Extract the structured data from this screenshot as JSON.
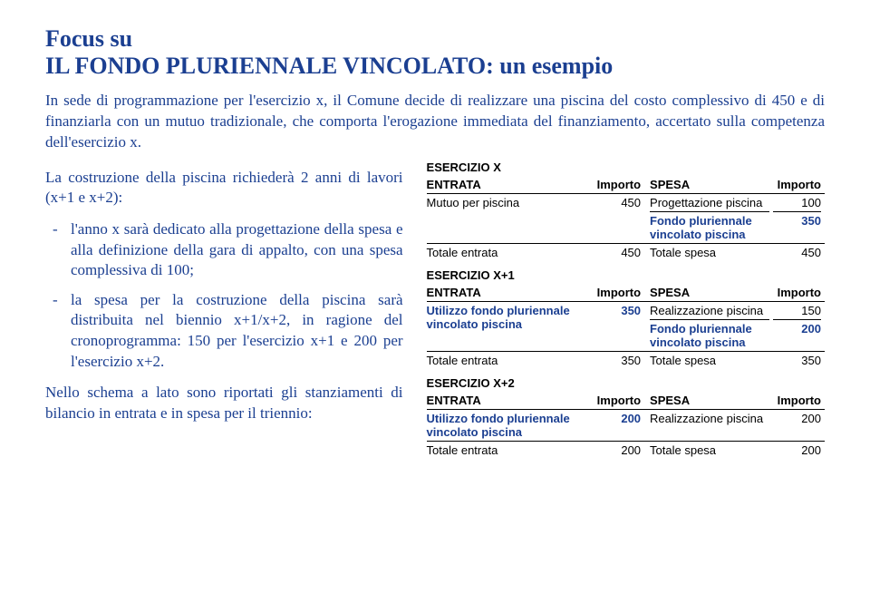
{
  "title": {
    "line1": "Focus su",
    "line2": "IL FONDO PLURIENNALE VINCOLATO: un esempio"
  },
  "intro": "In sede di programmazione per l'esercizio x, il Comune decide di realizzare una piscina del costo complessivo di 450 e di finanziarla con un mutuo tradizionale, che comporta l'erogazione immediata del finanziamento, accertato sulla competenza dell'esercizio x.",
  "left": {
    "lead": "La costruzione della piscina richiederà 2 anni di lavori (x+1 e x+2):",
    "bullets": [
      "l'anno x sarà dedicato alla progettazione della spesa e alla definizione della gara di appalto, con una spesa complessiva di 100;",
      "la spesa per la costruzione della piscina sarà distribuita nel biennio x+1/x+2, in ragione del cronoprogramma: 150 per l'esercizio x+1 e 200 per l'esercizio x+2."
    ],
    "closing": "Nello schema a lato sono riportati gli stanziamenti di bilancio in entrata e in spesa per il triennio:"
  },
  "labels": {
    "entrata": "ENTRATA",
    "importo": "Importo",
    "spesa": "SPESA",
    "totale_entrata": "Totale entrata",
    "totale_spesa": "Totale spesa"
  },
  "sections": {
    "x": {
      "label": "ESERCIZIO X",
      "entrata_desc": "Mutuo per piscina",
      "entrata_val": "450",
      "spesa1_desc": "Progettazione piscina",
      "spesa1_val": "100",
      "spesa2_desc": "Fondo pluriennale vincolato piscina",
      "spesa2_val": "350",
      "tot_entrata": "450",
      "tot_spesa": "450"
    },
    "x1": {
      "label": "ESERCIZIO X+1",
      "entrata_desc": "Utilizzo fondo pluriennale vincolato piscina",
      "entrata_val": "350",
      "spesa1_desc": "Realizzazione piscina",
      "spesa1_val": "150",
      "spesa2_desc": "Fondo pluriennale vincolato piscina",
      "spesa2_val": "200",
      "tot_entrata": "350",
      "tot_spesa": "350"
    },
    "x2": {
      "label": "ESERCIZIO X+2",
      "entrata_desc": "Utilizzo fondo pluriennale vincolato piscina",
      "entrata_val": "200",
      "spesa1_desc": "Realizzazione piscina",
      "spesa1_val": "200",
      "tot_entrata": "200",
      "tot_spesa": "200"
    }
  }
}
